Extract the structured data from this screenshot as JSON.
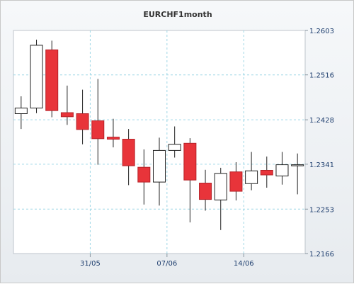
{
  "colors": {
    "up_body": "#ffffff",
    "down_body": "#e8343a",
    "outline": "#222222",
    "grid": "#9fd7e6",
    "axis_text": "#1f3f6f"
  },
  "chart_data": {
    "type": "candlestick",
    "title": "EURCHF1month",
    "y_axis_side": "right",
    "ylim": [
      1.2166,
      1.2603
    ],
    "yticks": [
      1.2166,
      1.2253,
      1.2341,
      1.2428,
      1.2516,
      1.2603
    ],
    "ytick_labels": [
      "1.2166",
      "1.2253",
      "1.2341",
      "1.2428",
      "1.2516",
      "1.2603"
    ],
    "xtick_labels": [
      {
        "label": "31/05",
        "after_index": 4
      },
      {
        "label": "07/06",
        "after_index": 9
      },
      {
        "label": "14/06",
        "after_index": 14
      }
    ],
    "grid": true,
    "candles": [
      {
        "open": 1.244,
        "high": 1.2474,
        "low": 1.241,
        "close": 1.2451
      },
      {
        "open": 1.2451,
        "high": 1.2585,
        "low": 1.2441,
        "close": 1.2574
      },
      {
        "open": 1.2565,
        "high": 1.2583,
        "low": 1.2433,
        "close": 1.2446
      },
      {
        "open": 1.2442,
        "high": 1.2495,
        "low": 1.2418,
        "close": 1.2434
      },
      {
        "open": 1.244,
        "high": 1.2487,
        "low": 1.238,
        "close": 1.2409
      },
      {
        "open": 1.2426,
        "high": 1.2508,
        "low": 1.234,
        "close": 1.2391
      },
      {
        "open": 1.2394,
        "high": 1.243,
        "low": 1.2374,
        "close": 1.239
      },
      {
        "open": 1.239,
        "high": 1.241,
        "low": 1.23,
        "close": 1.2338
      },
      {
        "open": 1.2335,
        "high": 1.237,
        "low": 1.2262,
        "close": 1.2306
      },
      {
        "open": 1.2306,
        "high": 1.2393,
        "low": 1.226,
        "close": 1.2368
      },
      {
        "open": 1.2368,
        "high": 1.2415,
        "low": 1.2354,
        "close": 1.238
      },
      {
        "open": 1.2382,
        "high": 1.2392,
        "low": 1.2227,
        "close": 1.231
      },
      {
        "open": 1.2304,
        "high": 1.233,
        "low": 1.225,
        "close": 1.2272
      },
      {
        "open": 1.2271,
        "high": 1.2334,
        "low": 1.2212,
        "close": 1.2323
      },
      {
        "open": 1.2326,
        "high": 1.2345,
        "low": 1.227,
        "close": 1.2288
      },
      {
        "open": 1.2303,
        "high": 1.2365,
        "low": 1.229,
        "close": 1.2328
      },
      {
        "open": 1.2329,
        "high": 1.2356,
        "low": 1.2295,
        "close": 1.232
      },
      {
        "open": 1.2318,
        "high": 1.2365,
        "low": 1.2301,
        "close": 1.234
      },
      {
        "open": 1.2338,
        "high": 1.2362,
        "low": 1.2282,
        "close": 1.234
      }
    ]
  }
}
